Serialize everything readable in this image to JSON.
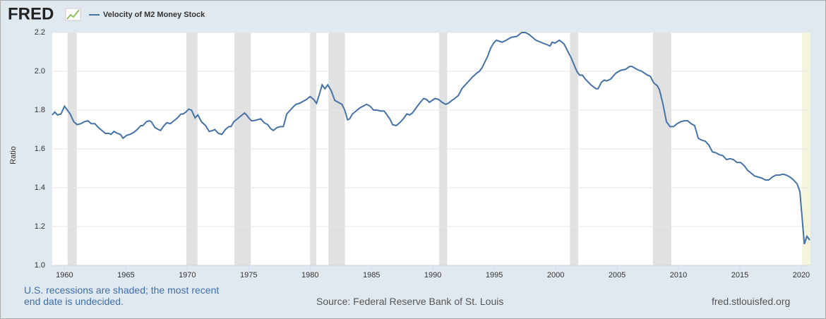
{
  "logo": "FRED",
  "note": "U.S. recessions are shaded; the most recent end date is undecided.",
  "source": "Source: Federal Reserve Bank of St. Louis",
  "site": "fred.stlouisfed.org",
  "chart_data": {
    "type": "line",
    "y_label": "Ratio",
    "xlim": [
      1959,
      2020.75
    ],
    "xticks": [
      1960,
      1965,
      1970,
      1975,
      1980,
      1985,
      1990,
      1995,
      2000,
      2005,
      2010,
      2015,
      2020
    ],
    "ylim": [
      1.0,
      2.2
    ],
    "yticks": [
      {
        "value": 1.0,
        "label": "1.0"
      },
      1.2,
      1.4,
      1.6,
      1.8,
      {
        "value": 2.0,
        "label": "2.0"
      },
      2.2
    ],
    "grid": true,
    "recession_color": "#e1e1e1",
    "recessions": [
      {
        "start": 1960.25,
        "end": 1961.0
      },
      {
        "start": 1969.92,
        "end": 1970.83
      },
      {
        "start": 1973.83,
        "end": 1975.17
      },
      {
        "start": 1980.0,
        "end": 1980.5
      },
      {
        "start": 1981.5,
        "end": 1982.83
      },
      {
        "start": 1990.5,
        "end": 1991.17
      },
      {
        "start": 2001.17,
        "end": 2001.83
      },
      {
        "start": 2007.92,
        "end": 2009.42
      }
    ],
    "current_recession": {
      "start": 2020.08,
      "end": 2020.75,
      "color": "#f5f5dc"
    },
    "x": [
      1959.0,
      1959.2,
      1959.43,
      1959.71,
      1960.0,
      1960.23,
      1960.46,
      1960.75,
      1961.03,
      1961.32,
      1961.61,
      1961.9,
      1962.18,
      1962.47,
      1962.76,
      1963.05,
      1963.33,
      1963.62,
      1963.79,
      1964.02,
      1964.31,
      1964.54,
      1964.77,
      1965.06,
      1965.34,
      1965.63,
      1965.92,
      1966.21,
      1966.38,
      1966.67,
      1966.9,
      1967.07,
      1967.36,
      1967.64,
      1967.82,
      1968.1,
      1968.33,
      1968.62,
      1968.91,
      1969.2,
      1969.48,
      1969.66,
      1969.89,
      1970.11,
      1970.34,
      1970.63,
      1970.86,
      1971.15,
      1971.49,
      1971.78,
      1972.07,
      1972.24,
      1972.53,
      1972.82,
      1973.1,
      1973.39,
      1973.56,
      1973.79,
      1974.08,
      1974.37,
      1974.66,
      1974.83,
      1975.0,
      1975.23,
      1975.4,
      1975.69,
      1975.98,
      1976.26,
      1976.55,
      1976.78,
      1977.01,
      1977.3,
      1977.59,
      1977.82,
      1978.1,
      1978.39,
      1978.68,
      1978.85,
      1979.14,
      1979.43,
      1979.71,
      1980.0,
      1980.29,
      1980.52,
      1980.75,
      1980.98,
      1981.21,
      1981.44,
      1981.72,
      1982.01,
      1982.3,
      1982.59,
      1982.82,
      1983.05,
      1983.22,
      1983.45,
      1983.74,
      1984.02,
      1984.31,
      1984.6,
      1984.89,
      1985.17,
      1985.46,
      1985.75,
      1986.03,
      1986.32,
      1986.49,
      1986.72,
      1987.01,
      1987.3,
      1987.59,
      1987.87,
      1988.1,
      1988.33,
      1988.62,
      1988.91,
      1989.25,
      1989.48,
      1989.71,
      1989.94,
      1990.17,
      1990.46,
      1990.75,
      1991.03,
      1991.26,
      1991.55,
      1991.78,
      1992.07,
      1992.36,
      1992.64,
      1992.93,
      1993.22,
      1993.56,
      1993.79,
      1994.02,
      1994.25,
      1994.48,
      1994.71,
      1994.94,
      1995.17,
      1995.4,
      1995.63,
      1995.98,
      1996.38,
      1996.84,
      1997.24,
      1997.53,
      1997.82,
      1998.39,
      1998.97,
      1999.37,
      1999.54,
      1999.71,
      1999.94,
      2000.29,
      2000.52,
      2000.69,
      2001.09,
      2001.26,
      2001.72,
      2001.95,
      2002.18,
      2002.41,
      2002.87,
      2003.28,
      2003.45,
      2003.74,
      2003.97,
      2004.14,
      2004.48,
      2004.89,
      2005.29,
      2005.69,
      2006.03,
      2006.21,
      2006.61,
      2007.01,
      2007.47,
      2007.7,
      2007.99,
      2008.28,
      2008.45,
      2008.74,
      2009.02,
      2009.31,
      2009.6,
      2009.89,
      2010.17,
      2010.46,
      2010.75,
      2011.03,
      2011.32,
      2011.61,
      2011.9,
      2012.18,
      2012.47,
      2012.76,
      2013.05,
      2013.33,
      2013.62,
      2013.91,
      2014.2,
      2014.48,
      2014.77,
      2015.06,
      2015.34,
      2015.63,
      2015.92,
      2016.21,
      2016.49,
      2016.78,
      2017.07,
      2017.36,
      2017.64,
      2017.93,
      2018.22,
      2018.51,
      2018.79,
      2019.08,
      2019.37,
      2019.66,
      2019.89,
      2020.25,
      2020.46,
      2020.69
    ],
    "series": [
      {
        "name": "Velocity of M2 Money Stock",
        "color": "#4572a7",
        "values": [
          1.775,
          1.79,
          1.775,
          1.78,
          1.82,
          1.8,
          1.78,
          1.74,
          1.725,
          1.73,
          1.74,
          1.745,
          1.73,
          1.73,
          1.71,
          1.695,
          1.68,
          1.68,
          1.675,
          1.69,
          1.68,
          1.675,
          1.655,
          1.67,
          1.675,
          1.685,
          1.7,
          1.72,
          1.72,
          1.74,
          1.745,
          1.74,
          1.71,
          1.7,
          1.695,
          1.72,
          1.735,
          1.73,
          1.745,
          1.76,
          1.78,
          1.78,
          1.79,
          1.805,
          1.8,
          1.76,
          1.775,
          1.74,
          1.72,
          1.69,
          1.695,
          1.7,
          1.68,
          1.675,
          1.7,
          1.715,
          1.715,
          1.74,
          1.755,
          1.77,
          1.785,
          1.775,
          1.76,
          1.745,
          1.745,
          1.75,
          1.755,
          1.735,
          1.725,
          1.705,
          1.695,
          1.71,
          1.715,
          1.715,
          1.78,
          1.8,
          1.82,
          1.83,
          1.835,
          1.845,
          1.855,
          1.87,
          1.855,
          1.835,
          1.88,
          1.93,
          1.91,
          1.93,
          1.9,
          1.85,
          1.84,
          1.83,
          1.8,
          1.75,
          1.755,
          1.78,
          1.795,
          1.81,
          1.82,
          1.83,
          1.82,
          1.8,
          1.8,
          1.795,
          1.795,
          1.77,
          1.755,
          1.725,
          1.72,
          1.735,
          1.755,
          1.78,
          1.775,
          1.785,
          1.81,
          1.835,
          1.86,
          1.855,
          1.84,
          1.85,
          1.86,
          1.855,
          1.84,
          1.83,
          1.835,
          1.85,
          1.86,
          1.875,
          1.91,
          1.93,
          1.95,
          1.97,
          1.99,
          2.0,
          2.02,
          2.05,
          2.08,
          2.12,
          2.145,
          2.16,
          2.155,
          2.15,
          2.16,
          2.175,
          2.18,
          2.2,
          2.2,
          2.19,
          2.16,
          2.145,
          2.135,
          2.13,
          2.15,
          2.145,
          2.16,
          2.15,
          2.14,
          2.09,
          2.07,
          2.0,
          1.98,
          1.98,
          1.96,
          1.93,
          1.91,
          1.91,
          1.945,
          1.955,
          1.95,
          1.96,
          1.99,
          2.005,
          2.01,
          2.025,
          2.025,
          2.01,
          2.0,
          1.98,
          1.975,
          1.94,
          1.925,
          1.905,
          1.83,
          1.74,
          1.715,
          1.715,
          1.73,
          1.74,
          1.745,
          1.745,
          1.73,
          1.72,
          1.655,
          1.645,
          1.64,
          1.62,
          1.585,
          1.58,
          1.57,
          1.565,
          1.545,
          1.55,
          1.545,
          1.53,
          1.53,
          1.515,
          1.49,
          1.475,
          1.46,
          1.455,
          1.45,
          1.44,
          1.44,
          1.455,
          1.465,
          1.465,
          1.47,
          1.465,
          1.455,
          1.44,
          1.42,
          1.38,
          1.11,
          1.15,
          1.13
        ]
      }
    ]
  }
}
